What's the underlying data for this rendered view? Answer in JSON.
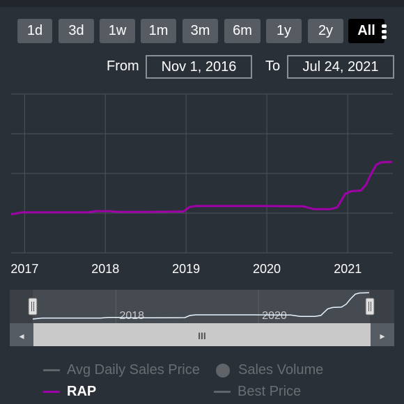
{
  "range_buttons": [
    {
      "label": "1d",
      "active": false
    },
    {
      "label": "3d",
      "active": false
    },
    {
      "label": "1w",
      "active": false
    },
    {
      "label": "1m",
      "active": false
    },
    {
      "label": "3m",
      "active": false
    },
    {
      "label": "6m",
      "active": false
    },
    {
      "label": "1y",
      "active": false
    },
    {
      "label": "2y",
      "active": false
    },
    {
      "label": "All",
      "active": true
    }
  ],
  "date_range": {
    "from_label": "From",
    "from_value": "Nov 1, 2016",
    "to_label": "To",
    "to_value": "Jul 24, 2021"
  },
  "navigator": {
    "year_labels": [
      "2018",
      "2020"
    ],
    "scroll_grip": "III",
    "left_arrow": "◂",
    "right_arrow": "▸"
  },
  "legend": [
    {
      "label": "Avg Daily Sales Price",
      "color": "#606468",
      "kind": "line",
      "enabled": false
    },
    {
      "label": "Sales Volume",
      "color": "#606468",
      "kind": "dot",
      "enabled": false
    },
    {
      "label": "RAP",
      "color": "#a000a8",
      "kind": "line",
      "enabled": true
    },
    {
      "label": "Best Price",
      "color": "#606468",
      "kind": "line",
      "enabled": false
    }
  ],
  "colors": {
    "background": "#2a3038",
    "rap_line": "#a000a8",
    "navigator_line": "#e8f4ff",
    "grid": "#4d535b"
  },
  "chart_data": {
    "type": "line",
    "x_tick_labels": [
      "2017",
      "2018",
      "2019",
      "2020",
      "2021"
    ],
    "xlim": [
      "2016-11-01",
      "2021-07-24"
    ],
    "ylim": [
      0,
      4
    ],
    "y_gridlines": [
      0,
      1,
      2,
      3,
      4
    ],
    "y_tick_labels_shown": false,
    "series": [
      {
        "name": "RAP",
        "color": "#a000a8",
        "points": [
          [
            "2016-11-01",
            0.97
          ],
          [
            "2016-12-20",
            1.02
          ],
          [
            "2017-03-01",
            1.02
          ],
          [
            "2017-08-01",
            1.02
          ],
          [
            "2017-10-15",
            1.02
          ],
          [
            "2017-11-20",
            1.05
          ],
          [
            "2018-01-15",
            1.05
          ],
          [
            "2018-03-01",
            1.03
          ],
          [
            "2018-07-01",
            1.03
          ],
          [
            "2018-12-20",
            1.04
          ],
          [
            "2019-01-15",
            1.15
          ],
          [
            "2019-02-15",
            1.18
          ],
          [
            "2019-06-01",
            1.18
          ],
          [
            "2019-12-01",
            1.18
          ],
          [
            "2020-06-15",
            1.17
          ],
          [
            "2020-08-01",
            1.1
          ],
          [
            "2020-10-15",
            1.1
          ],
          [
            "2020-11-15",
            1.15
          ],
          [
            "2020-12-20",
            1.48
          ],
          [
            "2021-01-15",
            1.55
          ],
          [
            "2021-03-01",
            1.57
          ],
          [
            "2021-03-25",
            1.72
          ],
          [
            "2021-04-15",
            1.97
          ],
          [
            "2021-05-10",
            2.22
          ],
          [
            "2021-06-01",
            2.28
          ],
          [
            "2021-07-20",
            2.29
          ]
        ]
      }
    ]
  }
}
